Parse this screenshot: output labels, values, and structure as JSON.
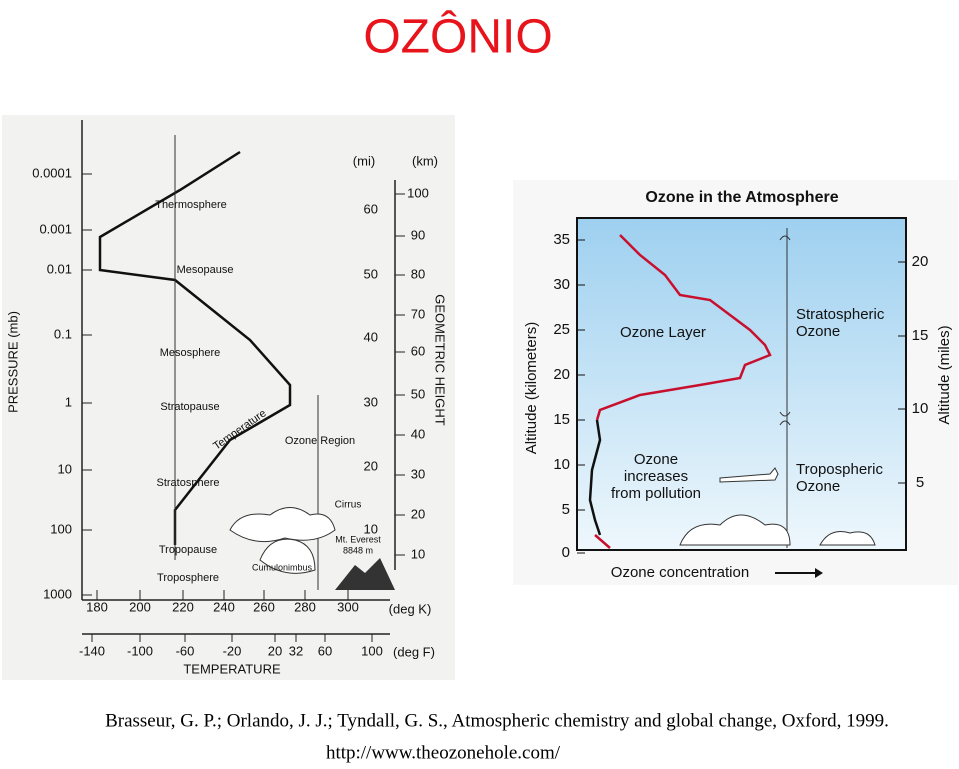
{
  "title": "OZÔNIO",
  "left_figure": {
    "pressure_label": "PRESSURE (mb)",
    "pressure_ticks": [
      "0.0001",
      "0.001",
      "0.01",
      "0.1",
      "1",
      "10",
      "100",
      "1000"
    ],
    "mi_label": "(mi)",
    "mi_ticks": [
      "60",
      "50",
      "40",
      "30",
      "20",
      "10"
    ],
    "km_label": "(km)",
    "km_ticks": [
      "100",
      "90",
      "80",
      "70",
      "60",
      "50",
      "40",
      "30",
      "20",
      "10"
    ],
    "height_label": "GEOMETRIC HEIGHT",
    "layers": [
      "Thermosphere",
      "Mesopause",
      "Mesosphere",
      "Stratopause",
      "Stratosphere",
      "Tropopause",
      "Troposphere"
    ],
    "annotations": [
      "Temperature",
      "Ozone Region",
      "Cirrus",
      "Mt. Everest",
      "8848 m",
      "Cumulonimbus"
    ],
    "k_ticks": [
      "180",
      "200",
      "220",
      "240",
      "260",
      "280",
      "300"
    ],
    "k_unit": "(deg K)",
    "f_ticks": [
      "-140",
      "-100",
      "-60",
      "-20",
      "20",
      "32",
      "60",
      "100"
    ],
    "f_unit": "(deg F)",
    "x_label": "TEMPERATURE"
  },
  "right_figure": {
    "title": "Ozone in the Atmosphere",
    "km_ticks": [
      "0",
      "5",
      "10",
      "15",
      "20",
      "25",
      "30",
      "35"
    ],
    "km_label": "Altitude (kilometers)",
    "mile_ticks": [
      "5",
      "10",
      "15",
      "20"
    ],
    "mile_label": "Altitude (miles)",
    "x_label": "Ozone concentration",
    "ozone_layer": "Ozone Layer",
    "stratospheric": [
      "Stratospheric",
      "Ozone"
    ],
    "tropospheric": [
      "Tropospheric",
      "Ozone"
    ],
    "pollution": [
      "Ozone",
      "increases",
      "from pollution"
    ]
  },
  "citation": "Brasseur, G. P.; Orlando, J. J.; Tyndall, G. S., Atmospheric chemistry and global change, Oxford, 1999.",
  "url": "http://www.theozonehole.com/"
}
